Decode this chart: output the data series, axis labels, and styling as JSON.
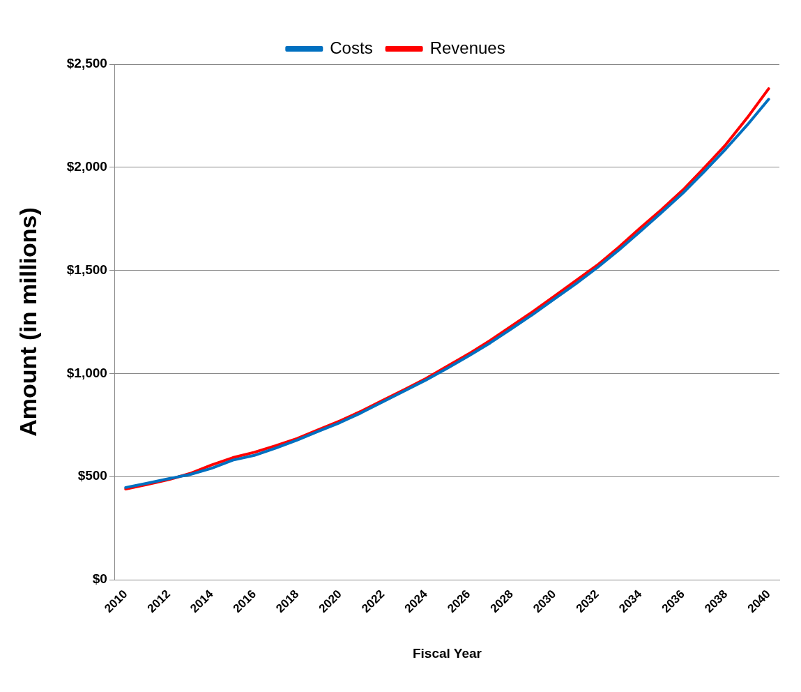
{
  "chart_data": {
    "type": "line",
    "xlabel": "Fiscal Year",
    "ylabel": "Amount (in millions)",
    "categories": [
      "2010",
      null,
      "2012",
      null,
      "2014",
      null,
      "2016",
      null,
      "2018",
      null,
      "2020",
      null,
      "2022",
      null,
      "2024",
      null,
      "2026",
      null,
      "2028",
      null,
      "2030",
      null,
      "2032",
      null,
      "2034",
      null,
      "2036",
      null,
      "2038",
      null,
      "2040"
    ],
    "series": [
      {
        "name": "Costs",
        "color": "#0070c0",
        "values": [
          447,
          468,
          490,
          510,
          540,
          580,
          603,
          638,
          677,
          720,
          762,
          810,
          863,
          915,
          968,
          1025,
          1085,
          1148,
          1217,
          1287,
          1361,
          1435,
          1513,
          1598,
          1688,
          1780,
          1875,
          1980,
          2089,
          2205,
          2330
        ]
      },
      {
        "name": "Revenues",
        "color": "#ff0000",
        "values": [
          440,
          462,
          485,
          515,
          556,
          592,
          618,
          650,
          685,
          728,
          770,
          818,
          870,
          922,
          975,
          1035,
          1095,
          1160,
          1230,
          1300,
          1375,
          1450,
          1525,
          1612,
          1705,
          1795,
          1890,
          1998,
          2110,
          2240,
          2381
        ]
      }
    ],
    "ylim": [
      0,
      2500
    ],
    "yticks": [
      {
        "value": 0,
        "label": "$0"
      },
      {
        "value": 500,
        "label": "$500"
      },
      {
        "value": 1000,
        "label": "$1,000"
      },
      {
        "value": 1500,
        "label": "$1,500"
      },
      {
        "value": 2000,
        "label": "$2,000"
      },
      {
        "value": 2500,
        "label": "$2,500"
      }
    ],
    "grid": "y",
    "legend": "top",
    "marker": "none",
    "line_style": "solid"
  }
}
